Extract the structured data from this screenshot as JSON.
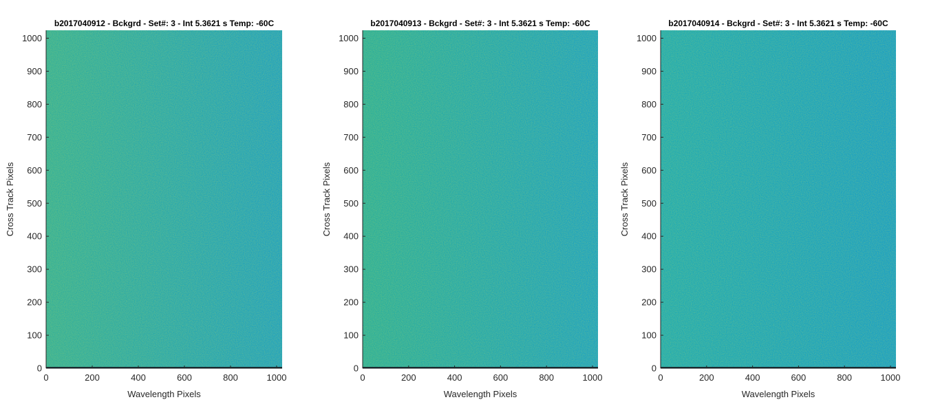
{
  "chart_data": [
    {
      "type": "heatmap",
      "title": "b2017040912 - Bckgrd - Set#: 3 - Int 5.3621 s Temp: -60C",
      "xlabel": "Wavelength Pixels",
      "ylabel": "Cross Track Pixels",
      "xlim": [
        0,
        1024
      ],
      "ylim": [
        0,
        1024
      ],
      "xticks": [
        0,
        200,
        400,
        600,
        800,
        1000
      ],
      "yticks": [
        0,
        100,
        200,
        300,
        400,
        500,
        600,
        700,
        800,
        900,
        1000
      ],
      "colormap": "parula",
      "color_left": "#2eae9c",
      "color_right": "#1a9fc4",
      "grid": false
    },
    {
      "type": "heatmap",
      "title": "b2017040913 - Bckgrd - Set#: 3 - Int 5.3621 s Temp: -60C",
      "xlabel": "Wavelength Pixels",
      "ylabel": "Cross Track Pixels",
      "xlim": [
        0,
        1024
      ],
      "ylim": [
        0,
        1024
      ],
      "xticks": [
        0,
        200,
        400,
        600,
        800,
        1000
      ],
      "yticks": [
        0,
        100,
        200,
        300,
        400,
        500,
        600,
        700,
        800,
        900,
        1000
      ],
      "colormap": "parula",
      "color_left": "#25ad9e",
      "color_right": "#17a0c6",
      "grid": false
    },
    {
      "type": "heatmap",
      "title": "b2017040914 - Bckgrd - Set#: 3 - Int 5.3621 s Temp: -60C",
      "xlabel": "Wavelength Pixels",
      "ylabel": "Cross Track Pixels",
      "xlim": [
        0,
        1024
      ],
      "ylim": [
        0,
        1024
      ],
      "xticks": [
        0,
        200,
        400,
        600,
        800,
        1000
      ],
      "yticks": [
        0,
        100,
        200,
        300,
        400,
        500,
        600,
        700,
        800,
        900,
        1000
      ],
      "colormap": "parula",
      "color_left": "#1aa9b6",
      "color_right": "#129cca",
      "grid": false
    }
  ]
}
